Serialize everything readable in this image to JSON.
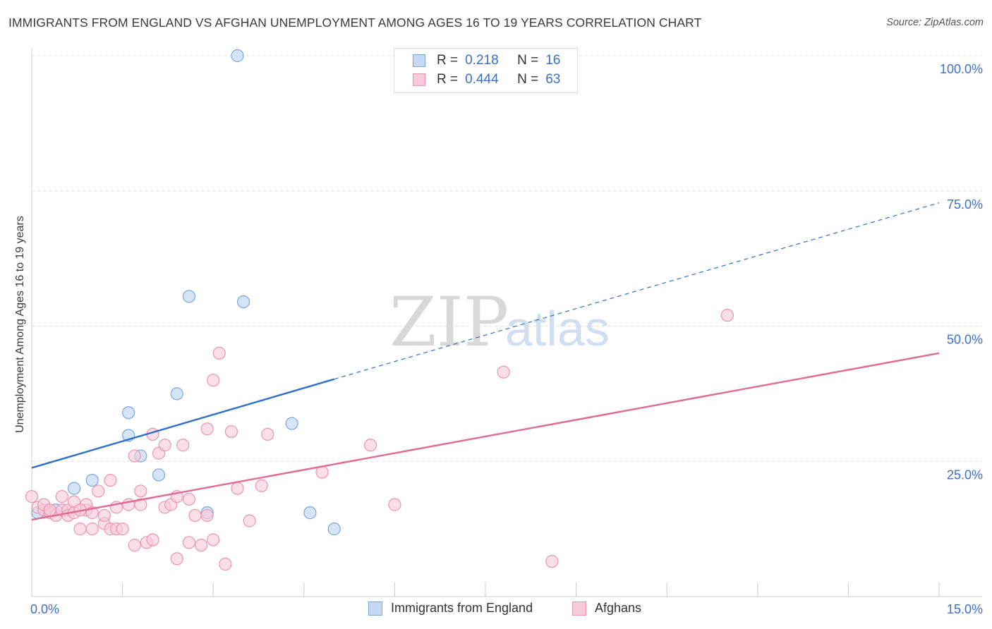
{
  "title": "IMMIGRANTS FROM ENGLAND VS AFGHAN UNEMPLOYMENT AMONG AGES 16 TO 19 YEARS CORRELATION CHART",
  "source": "Source: ZipAtlas.com",
  "watermark": {
    "zip": "ZIP",
    "atlas": "atlas"
  },
  "legend": {
    "series1": {
      "r_label": "R =",
      "r_value": "0.218",
      "n_label": "N =",
      "n_value": "16"
    },
    "series2": {
      "r_label": "R =",
      "r_value": "0.444",
      "n_label": "N =",
      "n_value": "63"
    }
  },
  "bottom_legend": {
    "series1": "Immigrants from England",
    "series2": "Afghans"
  },
  "colors": {
    "blue_fill": "#c5d9f5",
    "blue_stroke": "#7aa6e0",
    "blue_line": "#2f6fcc",
    "pink_fill": "#f8c9d8",
    "pink_stroke": "#ec94b0",
    "pink_line": "#e06a95",
    "tick_label": "#3d6fc9",
    "grid": "#dddddd"
  },
  "chart_data": {
    "type": "scatter",
    "title": "IMMIGRANTS FROM ENGLAND VS AFGHAN UNEMPLOYMENT AMONG AGES 16 TO 19 YEARS CORRELATION CHART",
    "xlabel": "",
    "ylabel": "Unemployment Among Ages 16 to 19 years",
    "xlim": [
      0,
      15
    ],
    "ylim": [
      0,
      100
    ],
    "x_tick_labels": [
      {
        "value": 0,
        "label": "0.0%"
      },
      {
        "value": 15,
        "label": "15.0%"
      }
    ],
    "y_tick_labels": [
      {
        "value": 25,
        "label": "25.0%"
      },
      {
        "value": 50,
        "label": "50.0%"
      },
      {
        "value": 75,
        "label": "75.0%"
      },
      {
        "value": 100,
        "label": "100.0%"
      }
    ],
    "series": [
      {
        "name": "Immigrants from England",
        "points": [
          [
            0.1,
            15.5
          ],
          [
            0.4,
            16
          ],
          [
            0.7,
            20
          ],
          [
            1.0,
            21.5
          ],
          [
            1.6,
            29.8
          ],
          [
            1.6,
            34
          ],
          [
            1.8,
            26
          ],
          [
            2.1,
            22.5
          ],
          [
            2.4,
            37.5
          ],
          [
            2.6,
            55.5
          ],
          [
            2.9,
            15.5
          ],
          [
            3.4,
            100
          ],
          [
            3.5,
            54.5
          ],
          [
            4.3,
            32
          ],
          [
            4.6,
            15.5
          ],
          [
            5.0,
            12.5
          ]
        ],
        "trend": {
          "x1": 0,
          "y1": 23.8,
          "x2": 5.0,
          "y2": 40.2,
          "dash_to_x": 15.0,
          "dash_to_y": 72.8
        }
      },
      {
        "name": "Afghans",
        "points": [
          [
            0.0,
            18.5
          ],
          [
            0.1,
            16.5
          ],
          [
            0.2,
            16
          ],
          [
            0.3,
            15.5
          ],
          [
            0.4,
            15
          ],
          [
            0.5,
            16
          ],
          [
            0.5,
            18.5
          ],
          [
            0.6,
            16
          ],
          [
            0.6,
            15
          ],
          [
            0.7,
            17.5
          ],
          [
            0.7,
            15.5
          ],
          [
            0.8,
            12.5
          ],
          [
            0.9,
            16
          ],
          [
            0.9,
            17
          ],
          [
            1.0,
            15.5
          ],
          [
            1.0,
            12.5
          ],
          [
            1.1,
            19.5
          ],
          [
            1.2,
            13.5
          ],
          [
            1.3,
            21.5
          ],
          [
            1.3,
            12.5
          ],
          [
            1.4,
            16.5
          ],
          [
            1.4,
            12.5
          ],
          [
            1.5,
            12.5
          ],
          [
            1.6,
            17
          ],
          [
            1.7,
            9.5
          ],
          [
            1.7,
            26
          ],
          [
            1.8,
            17
          ],
          [
            1.8,
            19.5
          ],
          [
            1.9,
            10
          ],
          [
            2.0,
            10.5
          ],
          [
            2.0,
            30
          ],
          [
            2.1,
            26.5
          ],
          [
            2.2,
            16.5
          ],
          [
            2.2,
            28
          ],
          [
            2.3,
            17
          ],
          [
            2.4,
            18.5
          ],
          [
            2.4,
            7
          ],
          [
            2.5,
            28
          ],
          [
            2.6,
            10
          ],
          [
            2.6,
            18
          ],
          [
            2.7,
            15
          ],
          [
            2.8,
            9.5
          ],
          [
            2.9,
            31
          ],
          [
            2.9,
            15
          ],
          [
            3.0,
            10.5
          ],
          [
            3.0,
            40
          ],
          [
            3.1,
            45
          ],
          [
            3.2,
            6
          ],
          [
            3.3,
            30.5
          ],
          [
            3.4,
            20
          ],
          [
            3.6,
            14
          ],
          [
            3.8,
            20.5
          ],
          [
            3.9,
            30
          ],
          [
            4.8,
            23
          ],
          [
            5.6,
            28
          ],
          [
            6.0,
            17
          ],
          [
            7.8,
            41.5
          ],
          [
            8.6,
            6.5
          ],
          [
            11.5,
            52
          ],
          [
            0.2,
            17
          ],
          [
            0.3,
            16
          ],
          [
            0.8,
            16
          ],
          [
            1.2,
            15
          ]
        ],
        "trend": {
          "x1": 0,
          "y1": 14.2,
          "x2": 15.0,
          "y2": 45.0
        }
      }
    ]
  },
  "y_axis_label": "Unemployment Among Ages 16 to 19 years"
}
